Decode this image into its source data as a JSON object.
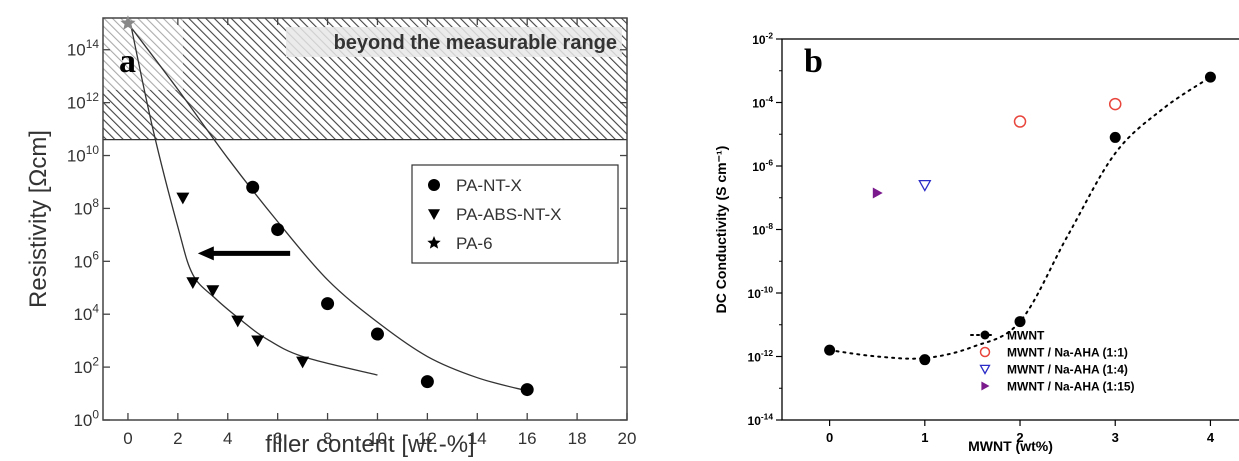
{
  "chart_data": [
    {
      "type": "scatter",
      "panel_label": "a",
      "xlabel": "filler content [wt.-%]",
      "ylabel": "Resistivity [Ωcm]",
      "xlim": [
        -1,
        20
      ],
      "ylim_log10": [
        0,
        15.2
      ],
      "xticks": [
        0,
        2,
        4,
        6,
        8,
        10,
        12,
        14,
        16,
        18,
        20
      ],
      "xtick_labels": [
        "0",
        "2",
        "4",
        "6",
        "8",
        "10",
        "12",
        "14",
        "16",
        "18",
        "20"
      ],
      "yticks_exp": [
        0,
        2,
        4,
        6,
        8,
        10,
        12,
        14
      ],
      "ytick_base": "10",
      "y_scale": "log",
      "annotation": "beyond the measurable range",
      "measurable_limit_exp": 10.6,
      "legend_position": "right-center",
      "series": [
        {
          "name": "PA-NT-X",
          "marker": "circle",
          "points": [
            [
              5,
              8.8
            ],
            [
              6,
              7.2
            ],
            [
              8,
              4.4
            ],
            [
              10,
              3.25
            ],
            [
              12,
              1.45
            ],
            [
              16,
              1.15
            ]
          ],
          "fit": [
            [
              0,
              15
            ],
            [
              2,
              12.5
            ],
            [
              4,
              9.9
            ],
            [
              6,
              7.5
            ],
            [
              8,
              5.3
            ],
            [
              10,
              3.7
            ],
            [
              12,
              2.4
            ],
            [
              14,
              1.6
            ],
            [
              16,
              1.1
            ]
          ]
        },
        {
          "name": "PA-ABS-NT-X",
          "marker": "triangle-down",
          "points": [
            [
              2.2,
              8.4
            ],
            [
              2.6,
              5.2
            ],
            [
              3.4,
              4.9
            ],
            [
              4.4,
              3.75
            ],
            [
              5.2,
              3.0
            ],
            [
              7,
              2.2
            ]
          ],
          "fit": [
            [
              0.1,
              15
            ],
            [
              1,
              11
            ],
            [
              2,
              7.3
            ],
            [
              2.6,
              5.5
            ],
            [
              3.5,
              4.6
            ],
            [
              4.5,
              3.8
            ],
            [
              5.5,
              3.1
            ],
            [
              7,
              2.4
            ],
            [
              10,
              1.7
            ]
          ]
        },
        {
          "name": "PA-6",
          "marker": "star",
          "points": [
            [
              0,
              15.0
            ]
          ]
        }
      ],
      "arrow": {
        "from": [
          6.5,
          6.3
        ],
        "to": [
          2.8,
          6.3
        ]
      }
    },
    {
      "type": "scatter",
      "panel_label": "b",
      "xlabel": "MWNT (wt%)",
      "ylabel": "DC Conductivity  (S cm⁻¹)",
      "xlim": [
        -0.5,
        4.3
      ],
      "xticks": [
        0,
        1,
        2,
        3,
        4
      ],
      "xtick_labels": [
        "0",
        "1",
        "2",
        "3",
        "4"
      ],
      "ylim_log10": [
        -14,
        -2
      ],
      "yticks_exp": [
        -14,
        -12,
        -10,
        -8,
        -6,
        -4,
        -2
      ],
      "ytick_base": "10",
      "y_scale": "log",
      "legend_position": "bottom-right",
      "series": [
        {
          "name": "MWNT",
          "marker": "circle-filled",
          "color": "#000000",
          "points": [
            [
              0,
              -11.8
            ],
            [
              1,
              -12.1
            ],
            [
              2,
              -10.9
            ],
            [
              3,
              -5.1
            ],
            [
              4,
              -3.2
            ]
          ],
          "trend": [
            [
              0,
              -11.8
            ],
            [
              0.5,
              -12.0
            ],
            [
              1,
              -12.05
            ],
            [
              1.5,
              -11.7
            ],
            [
              2,
              -10.9
            ],
            [
              2.5,
              -8.2
            ],
            [
              3,
              -5.6
            ],
            [
              3.5,
              -4.2
            ],
            [
              4,
              -3.2
            ]
          ]
        },
        {
          "name": "MWNT / Na-AHA (1:1)",
          "marker": "circle-open",
          "color": "#e8453c",
          "points": [
            [
              2,
              -4.6
            ],
            [
              3,
              -4.05
            ]
          ]
        },
        {
          "name": "MWNT / Na-AHA (1:4)",
          "marker": "triangle-down-open",
          "color": "#2b2bc7",
          "points": [
            [
              1,
              -6.6
            ]
          ]
        },
        {
          "name": "MWNT / Na-AHA (1:15)",
          "marker": "triangle-right-filled",
          "color": "#7a1a8c",
          "points": [
            [
              0.5,
              -6.85
            ]
          ]
        }
      ]
    }
  ]
}
